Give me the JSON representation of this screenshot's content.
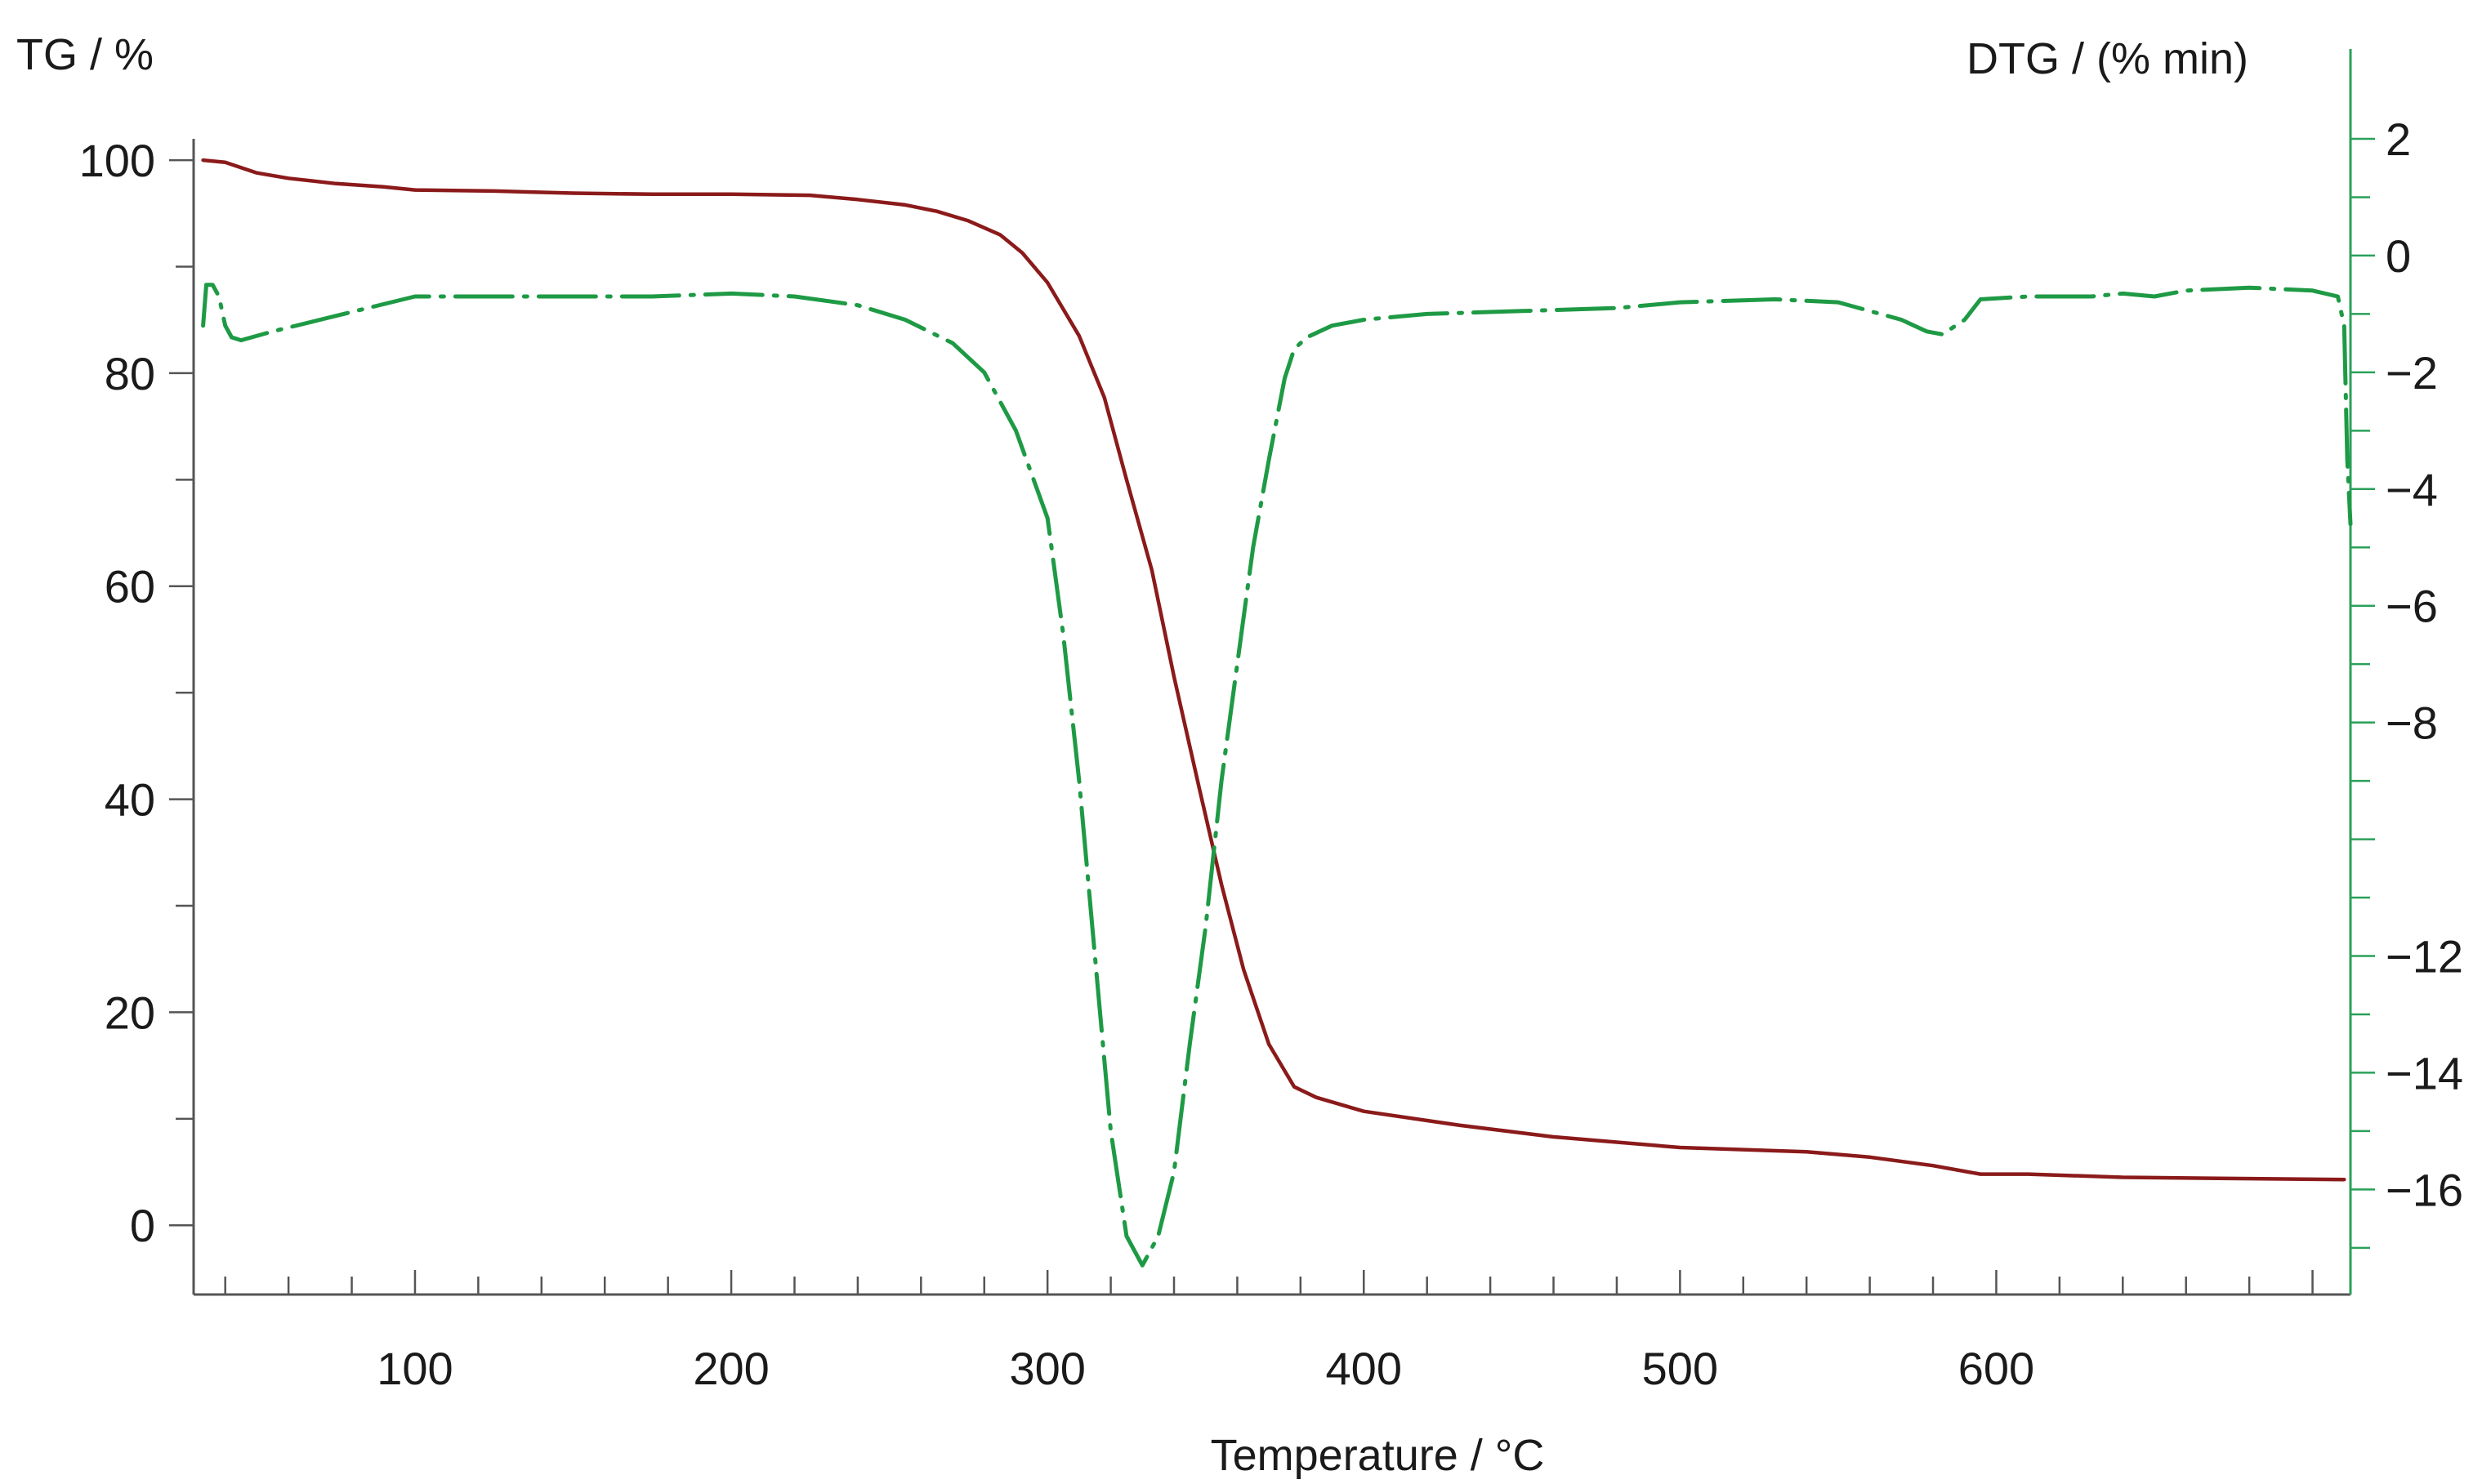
{
  "chart_data": {
    "type": "line",
    "title": "",
    "xlabel": "Temperature / °C",
    "ylabel": "TG / %",
    "y2label": "DTG / (% min)",
    "xlim": [
      30,
      712
    ],
    "ylim": [
      -6.5,
      102
    ],
    "y2lim": [
      -17.8,
      2
    ],
    "x_ticks": [
      "100",
      "200",
      "300",
      "400",
      "500",
      "600"
    ],
    "y_ticks": [
      "0",
      "20",
      "40",
      "60",
      "80",
      "100"
    ],
    "y2_ticks": [
      "2",
      "0",
      "−2",
      "−4",
      "−6",
      "−8",
      "−12",
      "−14",
      "−16"
    ],
    "grid": false,
    "legend": "none",
    "colors": {
      "tg": "#8b1a1a",
      "dtg": "#1e9a45",
      "axis_left": "#555555",
      "axis_right": "#2aa05a"
    },
    "series": [
      {
        "key": "tg",
        "axis": "left",
        "x": [
          33,
          40,
          50,
          60,
          75,
          90,
          100,
          125,
          150,
          175,
          200,
          225,
          240,
          255,
          265,
          275,
          285,
          292,
          300,
          310,
          318,
          325,
          333,
          340,
          348,
          355,
          362,
          370,
          378,
          385,
          400,
          430,
          460,
          500,
          540,
          560,
          580,
          595,
          610,
          640,
          670,
          710
        ],
        "y": [
          100,
          99.8,
          98.8,
          98.3,
          97.8,
          97.5,
          97.2,
          97.1,
          96.9,
          96.8,
          96.8,
          96.7,
          96.3,
          95.8,
          95.2,
          94.3,
          93,
          91.3,
          88.5,
          83.5,
          77.7,
          70,
          61.5,
          51.5,
          41,
          32,
          24,
          17,
          13,
          12,
          10.7,
          9.4,
          8.3,
          7.3,
          6.9,
          6.4,
          5.6,
          4.8,
          4.8,
          4.5,
          4.4,
          4.3
        ]
      },
      {
        "key": "dtg",
        "axis": "right",
        "x": [
          33,
          34,
          36,
          38,
          40,
          42,
          45,
          55,
          70,
          85,
          100,
          125,
          150,
          175,
          200,
          220,
          240,
          255,
          270,
          280,
          290,
          300,
          305,
          310,
          315,
          320,
          325,
          330,
          335,
          340,
          345,
          350,
          355,
          360,
          365,
          370,
          375,
          378,
          382,
          390,
          400,
          420,
          450,
          480,
          500,
          530,
          550,
          570,
          578,
          583,
          590,
          595,
          610,
          630,
          640,
          650,
          660,
          680,
          700,
          708,
          710,
          711,
          712
        ],
        "y": [
          -1.2,
          -0.5,
          -0.5,
          -0.7,
          -1.2,
          -1.4,
          -1.45,
          -1.3,
          -1.1,
          -0.9,
          -0.7,
          -0.7,
          -0.7,
          -0.7,
          -0.65,
          -0.7,
          -0.85,
          -1.1,
          -1.5,
          -2,
          -3,
          -4.5,
          -6.5,
          -9,
          -12,
          -15,
          -16.8,
          -17.3,
          -16.8,
          -15.7,
          -13.5,
          -11.5,
          -9,
          -7,
          -5,
          -3.5,
          -2.1,
          -1.6,
          -1.4,
          -1.2,
          -1.1,
          -1,
          -0.95,
          -0.9,
          -0.8,
          -0.75,
          -0.8,
          -1.1,
          -1.3,
          -1.35,
          -1.1,
          -0.75,
          -0.7,
          -0.7,
          -0.65,
          -0.7,
          -0.6,
          -0.55,
          -0.6,
          -0.7,
          -1.2,
          -3.5,
          -4.6
        ]
      }
    ]
  }
}
